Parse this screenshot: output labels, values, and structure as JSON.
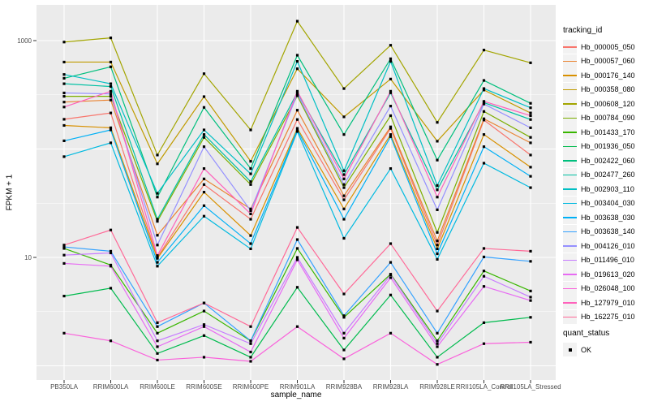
{
  "figure": {
    "background": "#FFFFFF",
    "panel_background": "#EBEBEB",
    "grid_color": "#FFFFFF",
    "tick_color": "#333333",
    "tick_label_color": "#4D4D4D",
    "point_color": "#000000"
  },
  "chart_data": {
    "type": "line",
    "title": "",
    "xlabel": "sample_name",
    "ylabel": "FPKM + 1",
    "y_scale": "log10",
    "ylim": [
      1,
      1600
    ],
    "y_ticks": [
      {
        "label": "1000",
        "value": 1000
      },
      {
        "label": "10",
        "value": 10
      }
    ],
    "grid": "on",
    "legend_position": "right",
    "point_shape": "square",
    "categories": [
      "PB350LA",
      "RRIM600LA",
      "RRIM600LE",
      "RRIM600SE",
      "RRIM600PE",
      "RRIM901LA",
      "RRIM928BA",
      "RRIM928LA",
      "RRIM928LE",
      "RRII105LA_Control",
      "RRII105LA_Stressed"
    ],
    "series": [
      {
        "name": "Hb_000005_050",
        "color": "#F8766D",
        "values": [
          188,
          215,
          10,
          47,
          22.5,
          187,
          34,
          155,
          13,
          185,
          88
        ]
      },
      {
        "name": "Hb_000057_060",
        "color": "#EA8331",
        "values": [
          271,
          283,
          16,
          53,
          28,
          228,
          37,
          160,
          14.2,
          190,
          114
        ]
      },
      {
        "name": "Hb_000176_140",
        "color": "#D89000",
        "values": [
          165,
          157,
          9.8,
          40,
          15.9,
          155,
          28,
          136,
          12,
          136,
          68
        ]
      },
      {
        "name": "Hb_000358_080",
        "color": "#C09B00",
        "values": [
          634,
          634,
          73,
          304,
          77,
          550,
          198,
          442,
          118,
          350,
          215
        ]
      },
      {
        "name": "Hb_000608_120",
        "color": "#A3A500",
        "values": [
          970,
          1060,
          88,
          495,
          150,
          1510,
          361,
          906,
          176,
          818,
          624
        ]
      },
      {
        "name": "Hb_000784_090",
        "color": "#7CAE00",
        "values": [
          306,
          306,
          21.5,
          128,
          47,
          310,
          44,
          203,
          17,
          222,
          128
        ]
      },
      {
        "name": "Hb_001433_170",
        "color": "#39B600",
        "values": [
          12.1,
          8.5,
          2.0,
          3.2,
          1.7,
          12.1,
          2.8,
          7.0,
          1.7,
          7.5,
          4.9
        ]
      },
      {
        "name": "Hb_001936_050",
        "color": "#00BB4E",
        "values": [
          4.4,
          5.2,
          1.3,
          1.9,
          1.2,
          5.3,
          1.4,
          4.5,
          1.2,
          2.5,
          2.8
        ]
      },
      {
        "name": "Hb_002422_060",
        "color": "#00BF7D",
        "values": [
          449,
          573,
          36,
          242,
          66,
          733,
          136,
          680,
          79,
          429,
          264
        ]
      },
      {
        "name": "Hb_002477_260",
        "color": "#00C1A3",
        "values": [
          400,
          377,
          22.5,
          136,
          50,
          333,
          58,
          330,
          42,
          268,
          187
        ]
      },
      {
        "name": "Hb_002903_110",
        "color": "#00BFC4",
        "values": [
          487,
          400,
          39,
          150,
          59,
          643,
          63,
          643,
          46,
          361,
          240
        ]
      },
      {
        "name": "Hb_003404_030",
        "color": "#00BAE0",
        "values": [
          85,
          114,
          8.3,
          24,
          12,
          145,
          15,
          66,
          9.6,
          74,
          44
        ]
      },
      {
        "name": "Hb_003638_030",
        "color": "#00B0F6",
        "values": [
          119,
          150,
          9.0,
          30,
          13.4,
          150,
          22.5,
          130,
          10.8,
          105,
          56
        ]
      },
      {
        "name": "Hb_003638_140",
        "color": "#35A2FF",
        "values": [
          12.5,
          11.4,
          2.3,
          3.8,
          1.7,
          14.6,
          2.9,
          9.0,
          2.0,
          10.1,
          9.2
        ]
      },
      {
        "name": "Hb_004126_010",
        "color": "#9590FF",
        "values": [
          329,
          322,
          13,
          105,
          27,
          322,
          47,
          249,
          27.5,
          260,
          157
        ]
      },
      {
        "name": "Hb_011496_010",
        "color": "#C77CFF",
        "values": [
          10.5,
          11.0,
          1.7,
          2.4,
          1.6,
          10.0,
          2.0,
          6.9,
          1.6,
          6.7,
          4.3
        ]
      },
      {
        "name": "Hb_019613_020",
        "color": "#E76BF3",
        "values": [
          8.8,
          8.3,
          1.5,
          2.3,
          1.34,
          9.5,
          1.8,
          6.5,
          1.5,
          5.4,
          4.0
        ]
      },
      {
        "name": "Hb_026048_100",
        "color": "#FA62DB",
        "values": [
          2.0,
          1.7,
          1.13,
          1.2,
          1.1,
          2.3,
          1.16,
          2.0,
          1.03,
          1.6,
          1.65
        ]
      },
      {
        "name": "Hb_127979_010",
        "color": "#FF62BC",
        "values": [
          244,
          341,
          10.4,
          66,
          25.2,
          341,
          53,
          341,
          36,
          275,
          203
        ]
      },
      {
        "name": "Hb_162275_010",
        "color": "#FF6A98",
        "values": [
          13.0,
          17.9,
          2.5,
          3.8,
          2.3,
          18.9,
          4.6,
          13.4,
          3.2,
          12.1,
          11.4
        ]
      }
    ],
    "legend": {
      "tracking_title": "tracking_id",
      "quant_title": "quant_status",
      "quant_items": [
        {
          "label": "OK"
        }
      ]
    }
  }
}
